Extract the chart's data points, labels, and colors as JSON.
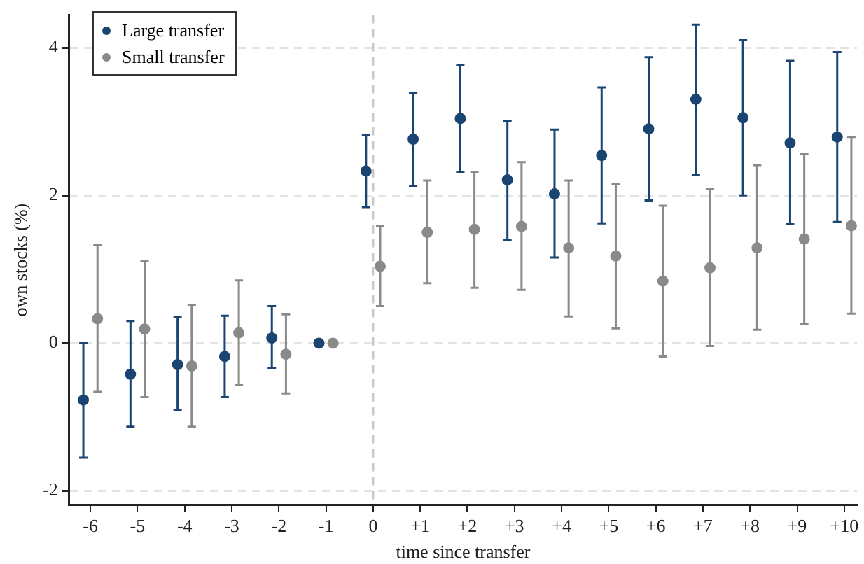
{
  "chart_data": {
    "type": "scatter",
    "xlabel": "time since transfer",
    "ylabel": "own stocks (%)",
    "categories": [
      "-6",
      "-5",
      "-4",
      "-3",
      "-2",
      "-1",
      "0",
      "+1",
      "+2",
      "+3",
      "+4",
      "+5",
      "+6",
      "+7",
      "+8",
      "+9",
      "+10"
    ],
    "series": [
      {
        "name": "Large transfer",
        "color": "#1a4472",
        "values": [
          -0.77,
          -0.42,
          -0.29,
          -0.18,
          0.07,
          0,
          2.33,
          2.76,
          3.04,
          2.21,
          2.02,
          2.54,
          2.9,
          3.3,
          3.05,
          2.71,
          2.79
        ],
        "errors": [
          [
            -1.55,
            0.0
          ],
          [
            -1.13,
            0.3
          ],
          [
            -0.91,
            0.35
          ],
          [
            -0.73,
            0.37
          ],
          [
            -0.34,
            0.5
          ],
          null,
          [
            1.84,
            2.82
          ],
          [
            2.13,
            3.38
          ],
          [
            2.32,
            3.76
          ],
          [
            1.4,
            3.01
          ],
          [
            1.16,
            2.89
          ],
          [
            1.62,
            3.46
          ],
          [
            1.93,
            3.87
          ],
          [
            2.28,
            4.31
          ],
          [
            2.0,
            4.1
          ],
          [
            1.61,
            3.82
          ],
          [
            1.64,
            3.94
          ]
        ]
      },
      {
        "name": "Small transfer",
        "color": "#8a8a8a",
        "values": [
          0.33,
          0.19,
          -0.31,
          0.14,
          -0.15,
          0,
          1.04,
          1.5,
          1.54,
          1.58,
          1.29,
          1.18,
          0.84,
          1.02,
          1.29,
          1.41,
          1.59
        ],
        "errors": [
          [
            -0.66,
            1.33
          ],
          [
            -0.73,
            1.11
          ],
          [
            -1.13,
            0.51
          ],
          [
            -0.57,
            0.85
          ],
          [
            -0.68,
            0.39
          ],
          null,
          [
            0.5,
            1.58
          ],
          [
            0.81,
            2.2
          ],
          [
            0.75,
            2.32
          ],
          [
            0.72,
            2.45
          ],
          [
            0.36,
            2.2
          ],
          [
            0.2,
            2.15
          ],
          [
            -0.18,
            1.86
          ],
          [
            -0.04,
            2.09
          ],
          [
            0.18,
            2.41
          ],
          [
            0.26,
            2.56
          ],
          [
            0.4,
            2.79
          ]
        ]
      }
    ],
    "ylim": [
      -2.19,
      4.44
    ],
    "yticks": [
      -2,
      0,
      2,
      4
    ],
    "grid": "y",
    "legend": "top left",
    "marker": "circle",
    "ref_lines": [
      {
        "axis": "x",
        "value": "0",
        "color": "#c8c8c8",
        "line_style": "dashed"
      }
    ]
  }
}
